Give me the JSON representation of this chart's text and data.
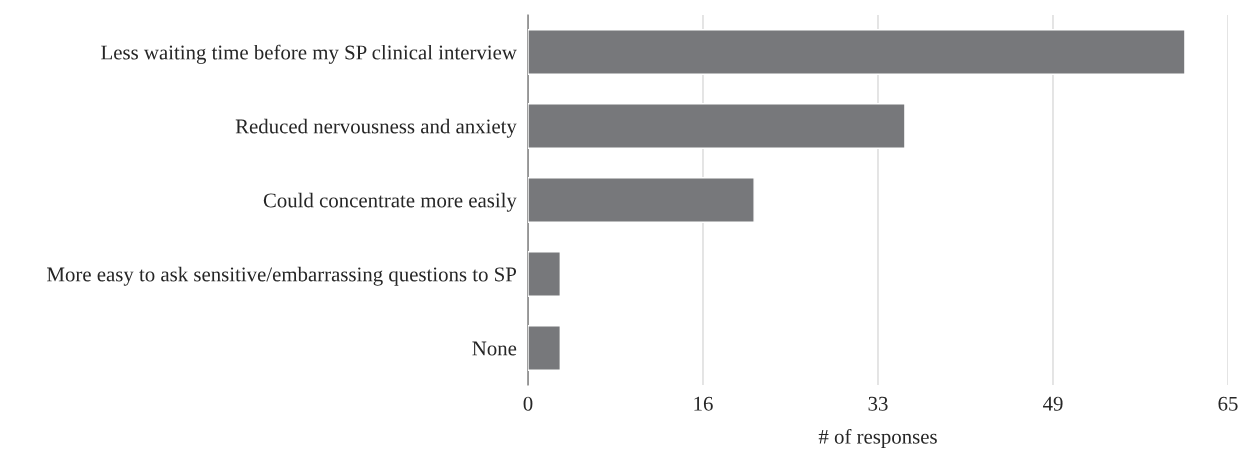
{
  "chart_data": {
    "type": "bar",
    "orientation": "horizontal",
    "xlabel": "# of responses",
    "categories": [
      "Less waiting time before my SP clinical interview",
      "Reduced nervousness and anxiety",
      "Could concentrate more easily",
      "More easy to ask sensitive/embarrassing questions to SP",
      "None"
    ],
    "values": [
      61,
      35,
      21,
      3,
      3
    ],
    "color": "#77787b",
    "xlim": [
      0,
      65
    ],
    "xticks": [
      0,
      {
        "value": 16.25,
        "label": "16"
      },
      {
        "value": 32.5,
        "label": "33"
      },
      {
        "value": 48.75,
        "label": "49"
      },
      65
    ],
    "grid": "x",
    "legend": false
  }
}
